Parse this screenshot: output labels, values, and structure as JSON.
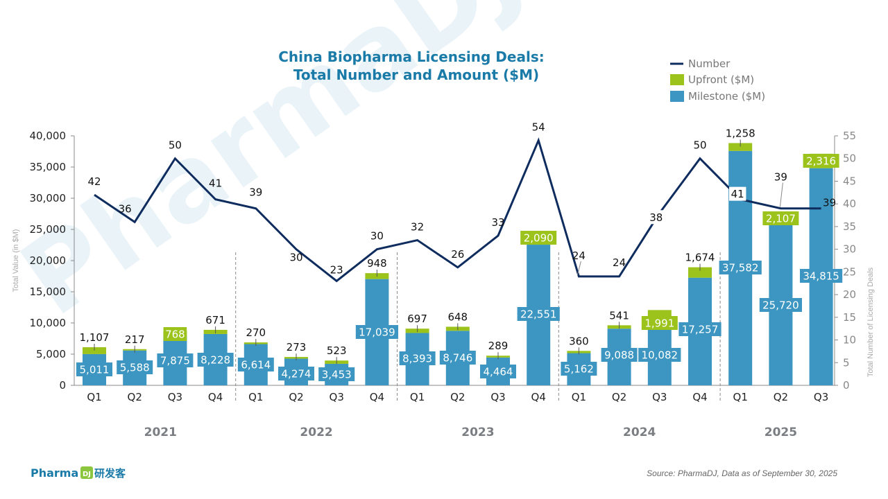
{
  "chart_data": {
    "type": "bar",
    "subtype": "stacked-bar-with-line",
    "title_lines": [
      "China Biopharma Licensing Deals:",
      "Total Number and Amount ($M)"
    ],
    "legend": {
      "placement": "top-right",
      "entries": [
        {
          "key": "number",
          "label": "Number",
          "color": "#0f2c5e",
          "kind": "line"
        },
        {
          "key": "upfront",
          "label": "Upfront ($M)",
          "color": "#9bc31c",
          "kind": "box"
        },
        {
          "key": "milestone",
          "label": "Milestone ($M)",
          "color": "#3d96c1",
          "kind": "box"
        }
      ]
    },
    "left_axis": {
      "title": "Total Value (in $M)",
      "ylim": [
        0,
        40000
      ],
      "ticks": [
        0,
        5000,
        10000,
        15000,
        20000,
        25000,
        30000,
        35000,
        40000
      ],
      "tick_labels": [
        "0",
        "5,000",
        "10,000",
        "15,000",
        "20,000",
        "25,000",
        "30,000",
        "35,000",
        "40,000"
      ]
    },
    "right_axis": {
      "title": "Total Number of Licensing Deals",
      "ylim": [
        0,
        55
      ],
      "ticks": [
        0,
        5,
        10,
        15,
        20,
        25,
        30,
        35,
        40,
        45,
        50,
        55
      ],
      "tick_labels": [
        "0",
        "5",
        "10",
        "15",
        "20",
        "25",
        "30",
        "35",
        "40",
        "45",
        "50",
        "55"
      ]
    },
    "groups": [
      {
        "year": "2021",
        "quarters": [
          "Q1",
          "Q2",
          "Q3",
          "Q4"
        ]
      },
      {
        "year": "2022",
        "quarters": [
          "Q1",
          "Q2",
          "Q3",
          "Q4"
        ]
      },
      {
        "year": "2023",
        "quarters": [
          "Q1",
          "Q2",
          "Q3",
          "Q4"
        ]
      },
      {
        "year": "2024",
        "quarters": [
          "Q1",
          "Q2",
          "Q3",
          "Q4"
        ]
      },
      {
        "year": "2025",
        "quarters": [
          "Q1",
          "Q2",
          "Q3"
        ]
      }
    ],
    "categories": [
      "2021 Q1",
      "2021 Q2",
      "2021 Q3",
      "2021 Q4",
      "2022 Q1",
      "2022 Q2",
      "2022 Q3",
      "2022 Q4",
      "2023 Q1",
      "2023 Q2",
      "2023 Q3",
      "2023 Q4",
      "2024 Q1",
      "2024 Q2",
      "2024 Q3",
      "2024 Q4",
      "2025 Q1",
      "2025 Q2",
      "2025 Q3"
    ],
    "series": [
      {
        "name": "Milestone ($M)",
        "key": "milestone",
        "axis": "left",
        "values": [
          5011,
          5588,
          7875,
          8228,
          6614,
          4274,
          3453,
          17039,
          8393,
          8746,
          4464,
          22551,
          5162,
          9088,
          10082,
          17257,
          37582,
          25720,
          34815
        ],
        "labels": [
          "5,011",
          "5,588",
          "7,875",
          "8,228",
          "6,614",
          "4,274",
          "3,453",
          "17,039",
          "8,393",
          "8,746",
          "4,464",
          "22,551",
          "5,162",
          "9,088",
          "10,082",
          "17,257",
          "37,582",
          "25,720",
          "34,815"
        ]
      },
      {
        "name": "Upfront ($M)",
        "key": "upfront",
        "axis": "left",
        "values": [
          1107,
          217,
          768,
          671,
          270,
          273,
          523,
          948,
          697,
          648,
          289,
          2090,
          360,
          541,
          1991,
          1674,
          1258,
          2107,
          2316
        ],
        "labels": [
          "1,107",
          "217",
          "768",
          "671",
          "270",
          "273",
          "523",
          "948",
          "697",
          "648",
          "289",
          "2,090",
          "360",
          "541",
          "1,991",
          "1,674",
          "1,258",
          "2,107",
          "2,316"
        ]
      },
      {
        "name": "Number",
        "key": "number",
        "axis": "right",
        "values": [
          42,
          36,
          50,
          41,
          39,
          30,
          23,
          30,
          32,
          26,
          33,
          54,
          24,
          24,
          38,
          50,
          41,
          39,
          39
        ],
        "labels": [
          "42",
          "36",
          "50",
          "41",
          "39",
          "30",
          "23",
          "30",
          "32",
          "26",
          "33",
          "54",
          "24",
          "24",
          "38",
          "50",
          "41",
          "39",
          "39"
        ]
      }
    ]
  },
  "watermark": {
    "text": "PharmaDJ研发客"
  },
  "footer": {
    "logo_text": "Pharma",
    "logo_badge": "DJ",
    "logo_cn": "研发客",
    "source": "Source: PharmaDJ, Data as of September 30, 2025"
  }
}
